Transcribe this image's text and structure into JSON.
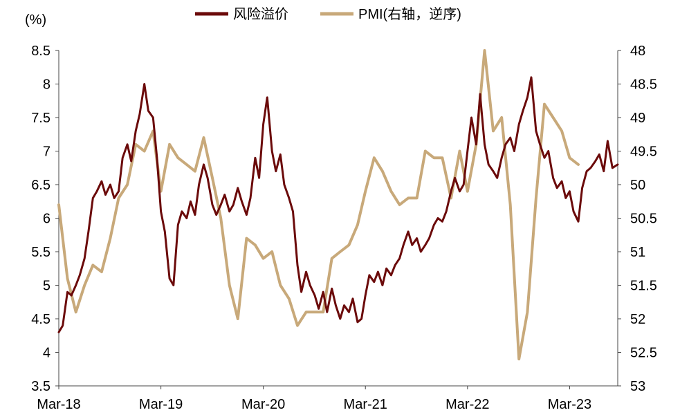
{
  "chart_data": {
    "type": "line",
    "left_axis": {
      "unit_label": "(%)",
      "ylim": [
        3.5,
        8.5
      ],
      "ticks": [
        "3.5",
        "4",
        "4.5",
        "5",
        "5.5",
        "6",
        "6.5",
        "7",
        "7.5",
        "8",
        "8.5"
      ]
    },
    "right_axis": {
      "ylim": [
        48,
        53
      ],
      "reversed": true,
      "ticks": [
        "48",
        "48.5",
        "49",
        "49.5",
        "50",
        "50.5",
        "51",
        "51.5",
        "52",
        "52.5",
        "53"
      ]
    },
    "x_axis": {
      "range": [
        "2018-03-01",
        "2023-08-20"
      ],
      "tick_labels": [
        "Mar-18",
        "Mar-19",
        "Mar-20",
        "Mar-21",
        "Mar-22",
        "Mar-23"
      ],
      "tick_dates": [
        "2018-03-01",
        "2019-03-01",
        "2020-03-01",
        "2021-03-01",
        "2022-03-01",
        "2023-03-01"
      ]
    },
    "grid": false,
    "legend_position": "top-center",
    "series": [
      {
        "name": "风险溢价",
        "axis": "left",
        "color": "#6b0a0a",
        "points": [
          [
            "2018-03-01",
            4.3
          ],
          [
            "2018-03-15",
            4.4
          ],
          [
            "2018-04-01",
            4.9
          ],
          [
            "2018-04-15",
            4.85
          ],
          [
            "2018-05-01",
            5.0
          ],
          [
            "2018-05-15",
            5.15
          ],
          [
            "2018-06-01",
            5.4
          ],
          [
            "2018-06-15",
            5.8
          ],
          [
            "2018-07-01",
            6.3
          ],
          [
            "2018-07-15",
            6.4
          ],
          [
            "2018-08-01",
            6.55
          ],
          [
            "2018-08-15",
            6.35
          ],
          [
            "2018-09-01",
            6.5
          ],
          [
            "2018-09-15",
            6.3
          ],
          [
            "2018-10-01",
            6.4
          ],
          [
            "2018-10-15",
            6.9
          ],
          [
            "2018-11-01",
            7.1
          ],
          [
            "2018-11-15",
            6.85
          ],
          [
            "2018-12-01",
            7.3
          ],
          [
            "2018-12-15",
            7.55
          ],
          [
            "2019-01-01",
            8.0
          ],
          [
            "2019-01-15",
            7.6
          ],
          [
            "2019-02-01",
            7.5
          ],
          [
            "2019-02-15",
            6.9
          ],
          [
            "2019-03-01",
            6.1
          ],
          [
            "2019-03-15",
            5.8
          ],
          [
            "2019-04-01",
            5.1
          ],
          [
            "2019-04-15",
            5.0
          ],
          [
            "2019-05-01",
            5.9
          ],
          [
            "2019-05-15",
            6.1
          ],
          [
            "2019-06-01",
            6.0
          ],
          [
            "2019-06-15",
            6.25
          ],
          [
            "2019-07-01",
            6.05
          ],
          [
            "2019-07-15",
            6.5
          ],
          [
            "2019-08-01",
            6.8
          ],
          [
            "2019-08-15",
            6.6
          ],
          [
            "2019-09-01",
            6.2
          ],
          [
            "2019-09-15",
            6.05
          ],
          [
            "2019-10-01",
            6.2
          ],
          [
            "2019-10-15",
            6.35
          ],
          [
            "2019-11-01",
            6.1
          ],
          [
            "2019-11-15",
            6.2
          ],
          [
            "2019-12-01",
            6.45
          ],
          [
            "2019-12-15",
            6.25
          ],
          [
            "2020-01-01",
            6.05
          ],
          [
            "2020-01-15",
            6.3
          ],
          [
            "2020-02-01",
            6.9
          ],
          [
            "2020-02-15",
            6.6
          ],
          [
            "2020-03-01",
            7.4
          ],
          [
            "2020-03-15",
            7.8
          ],
          [
            "2020-04-01",
            7.0
          ],
          [
            "2020-04-15",
            6.7
          ],
          [
            "2020-05-01",
            6.95
          ],
          [
            "2020-05-15",
            6.5
          ],
          [
            "2020-06-01",
            6.3
          ],
          [
            "2020-06-15",
            6.1
          ],
          [
            "2020-07-01",
            5.3
          ],
          [
            "2020-07-15",
            4.9
          ],
          [
            "2020-08-01",
            5.2
          ],
          [
            "2020-08-15",
            5.0
          ],
          [
            "2020-09-01",
            4.85
          ],
          [
            "2020-09-15",
            4.65
          ],
          [
            "2020-10-01",
            4.9
          ],
          [
            "2020-10-15",
            4.6
          ],
          [
            "2020-11-01",
            4.95
          ],
          [
            "2020-11-15",
            4.7
          ],
          [
            "2020-12-01",
            4.5
          ],
          [
            "2020-12-15",
            4.7
          ],
          [
            "2021-01-01",
            4.6
          ],
          [
            "2021-01-15",
            4.8
          ],
          [
            "2021-02-01",
            4.45
          ],
          [
            "2021-02-15",
            4.5
          ],
          [
            "2021-03-01",
            4.85
          ],
          [
            "2021-03-15",
            5.15
          ],
          [
            "2021-04-01",
            5.05
          ],
          [
            "2021-04-15",
            5.2
          ],
          [
            "2021-05-01",
            5.0
          ],
          [
            "2021-05-15",
            5.25
          ],
          [
            "2021-06-01",
            5.15
          ],
          [
            "2021-06-15",
            5.3
          ],
          [
            "2021-07-01",
            5.4
          ],
          [
            "2021-07-15",
            5.6
          ],
          [
            "2021-08-01",
            5.8
          ],
          [
            "2021-08-15",
            5.6
          ],
          [
            "2021-09-01",
            5.7
          ],
          [
            "2021-09-15",
            5.5
          ],
          [
            "2021-10-01",
            5.6
          ],
          [
            "2021-10-15",
            5.7
          ],
          [
            "2021-11-01",
            5.9
          ],
          [
            "2021-11-15",
            6.0
          ],
          [
            "2021-12-01",
            5.95
          ],
          [
            "2021-12-15",
            6.1
          ],
          [
            "2022-01-01",
            6.4
          ],
          [
            "2022-01-15",
            6.6
          ],
          [
            "2022-02-01",
            6.4
          ],
          [
            "2022-02-15",
            6.5
          ],
          [
            "2022-03-01",
            7.0
          ],
          [
            "2022-03-15",
            7.5
          ],
          [
            "2022-04-01",
            7.1
          ],
          [
            "2022-04-15",
            7.85
          ],
          [
            "2022-05-01",
            7.1
          ],
          [
            "2022-05-15",
            6.8
          ],
          [
            "2022-06-01",
            6.7
          ],
          [
            "2022-06-15",
            6.6
          ],
          [
            "2022-07-01",
            6.9
          ],
          [
            "2022-07-15",
            7.1
          ],
          [
            "2022-08-01",
            7.2
          ],
          [
            "2022-08-15",
            7.0
          ],
          [
            "2022-09-01",
            7.4
          ],
          [
            "2022-09-15",
            7.6
          ],
          [
            "2022-10-01",
            7.8
          ],
          [
            "2022-10-15",
            8.1
          ],
          [
            "2022-11-01",
            7.3
          ],
          [
            "2022-11-15",
            7.1
          ],
          [
            "2022-12-01",
            6.9
          ],
          [
            "2022-12-15",
            7.0
          ],
          [
            "2023-01-01",
            6.6
          ],
          [
            "2023-01-15",
            6.45
          ],
          [
            "2023-02-01",
            6.55
          ],
          [
            "2023-02-15",
            6.3
          ],
          [
            "2023-03-01",
            6.4
          ],
          [
            "2023-03-15",
            6.1
          ],
          [
            "2023-04-01",
            5.95
          ],
          [
            "2023-04-15",
            6.45
          ],
          [
            "2023-05-01",
            6.7
          ],
          [
            "2023-05-15",
            6.75
          ],
          [
            "2023-06-01",
            6.85
          ],
          [
            "2023-06-15",
            6.95
          ],
          [
            "2023-07-01",
            6.7
          ],
          [
            "2023-07-15",
            7.15
          ],
          [
            "2023-08-01",
            6.75
          ],
          [
            "2023-08-20",
            6.8
          ]
        ]
      },
      {
        "name": "PMI(右轴，逆序)",
        "axis": "right",
        "color": "#c8a97a",
        "points": [
          [
            "2018-03-01",
            50.3
          ],
          [
            "2018-04-01",
            51.4
          ],
          [
            "2018-05-01",
            51.9
          ],
          [
            "2018-06-01",
            51.5
          ],
          [
            "2018-07-01",
            51.2
          ],
          [
            "2018-08-01",
            51.3
          ],
          [
            "2018-09-01",
            50.8
          ],
          [
            "2018-10-01",
            50.2
          ],
          [
            "2018-11-01",
            50.0
          ],
          [
            "2018-12-01",
            49.4
          ],
          [
            "2019-01-01",
            49.5
          ],
          [
            "2019-02-01",
            49.2
          ],
          [
            "2019-03-01",
            50.1
          ],
          [
            "2019-04-01",
            49.4
          ],
          [
            "2019-05-01",
            49.6
          ],
          [
            "2019-06-01",
            49.7
          ],
          [
            "2019-07-01",
            49.8
          ],
          [
            "2019-08-01",
            49.3
          ],
          [
            "2019-09-01",
            49.9
          ],
          [
            "2019-10-01",
            50.5
          ],
          [
            "2019-11-01",
            51.5
          ],
          [
            "2019-12-01",
            52.0
          ],
          [
            "2020-01-01",
            50.8
          ],
          [
            "2020-02-01",
            50.9
          ],
          [
            "2020-03-01",
            51.1
          ],
          [
            "2020-04-01",
            51.0
          ],
          [
            "2020-05-01",
            51.5
          ],
          [
            "2020-06-01",
            51.7
          ],
          [
            "2020-07-01",
            52.1
          ],
          [
            "2020-08-01",
            51.9
          ],
          [
            "2020-09-01",
            51.9
          ],
          [
            "2020-10-01",
            51.9
          ],
          [
            "2020-11-01",
            51.1
          ],
          [
            "2020-12-01",
            51.0
          ],
          [
            "2021-01-01",
            50.9
          ],
          [
            "2021-02-01",
            50.6
          ],
          [
            "2021-03-01",
            50.1
          ],
          [
            "2021-04-01",
            49.6
          ],
          [
            "2021-05-01",
            49.8
          ],
          [
            "2021-06-01",
            50.1
          ],
          [
            "2021-07-01",
            50.3
          ],
          [
            "2021-08-01",
            50.2
          ],
          [
            "2021-09-01",
            50.2
          ],
          [
            "2021-10-01",
            49.5
          ],
          [
            "2021-11-01",
            49.6
          ],
          [
            "2021-12-01",
            49.6
          ],
          [
            "2022-01-01",
            50.2
          ],
          [
            "2022-02-01",
            49.5
          ],
          [
            "2022-03-01",
            50.1
          ],
          [
            "2022-04-01",
            49.4
          ],
          [
            "2022-05-01",
            48.0
          ],
          [
            "2022-06-01",
            49.2
          ],
          [
            "2022-07-01",
            49.0
          ],
          [
            "2022-08-01",
            50.3
          ],
          [
            "2022-09-01",
            52.6
          ],
          [
            "2022-10-01",
            51.9
          ],
          [
            "2022-11-01",
            50.2
          ],
          [
            "2022-12-01",
            48.8
          ],
          [
            "2023-01-01",
            49.0
          ],
          [
            "2023-02-01",
            49.2
          ],
          [
            "2023-03-01",
            49.6
          ],
          [
            "2023-04-01",
            49.7
          ]
        ]
      }
    ]
  }
}
